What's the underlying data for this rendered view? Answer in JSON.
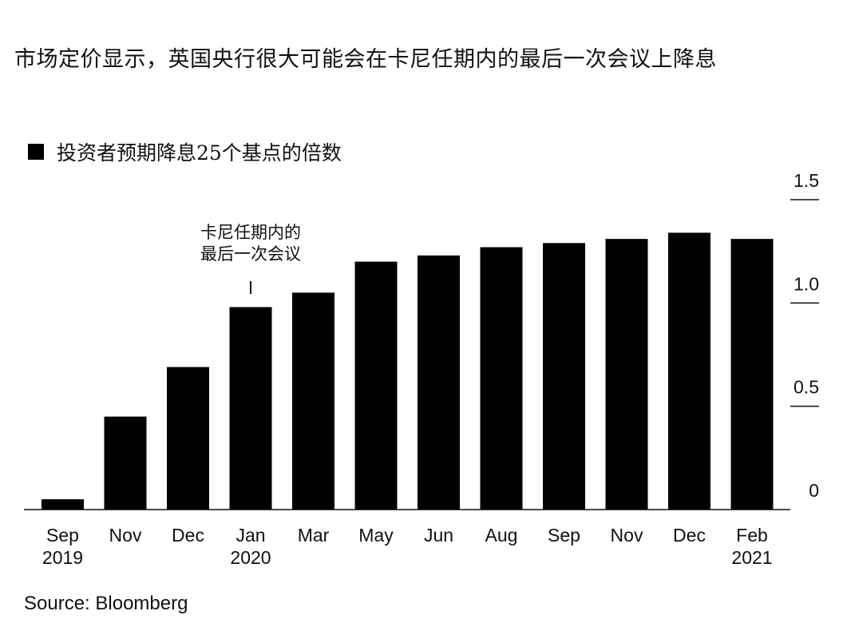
{
  "title": "市场定价显示，英国央行很大可能会在卡尼任期内的最后一次会议上降息",
  "source": "Source: Bloomberg",
  "chart_data": {
    "type": "bar",
    "series": [
      {
        "name": "投资者预期降息25个基点的倍数",
        "values": [
          0.05,
          0.45,
          0.69,
          0.98,
          1.05,
          1.2,
          1.23,
          1.27,
          1.29,
          1.31,
          1.34,
          1.31
        ]
      }
    ],
    "categories": [
      {
        "month": "Sep",
        "year": "2019"
      },
      {
        "month": "Nov",
        "year": ""
      },
      {
        "month": "Dec",
        "year": ""
      },
      {
        "month": "Jan",
        "year": "2020"
      },
      {
        "month": "Mar",
        "year": ""
      },
      {
        "month": "May",
        "year": ""
      },
      {
        "month": "Jun",
        "year": ""
      },
      {
        "month": "Aug",
        "year": ""
      },
      {
        "month": "Sep",
        "year": ""
      },
      {
        "month": "Nov",
        "year": ""
      },
      {
        "month": "Dec",
        "year": ""
      },
      {
        "month": "Feb",
        "year": "2021"
      }
    ],
    "yticks": [
      "0",
      "0.5",
      "1.0",
      "1.5"
    ],
    "ylim": [
      0,
      1.5
    ],
    "y_axis_position": "right",
    "bar_color": "#000000",
    "annotation": {
      "lines": [
        "卡尼任期内的",
        "最后一次会议"
      ],
      "category_index": 3
    },
    "legend_position": "top-left",
    "grid": false
  }
}
